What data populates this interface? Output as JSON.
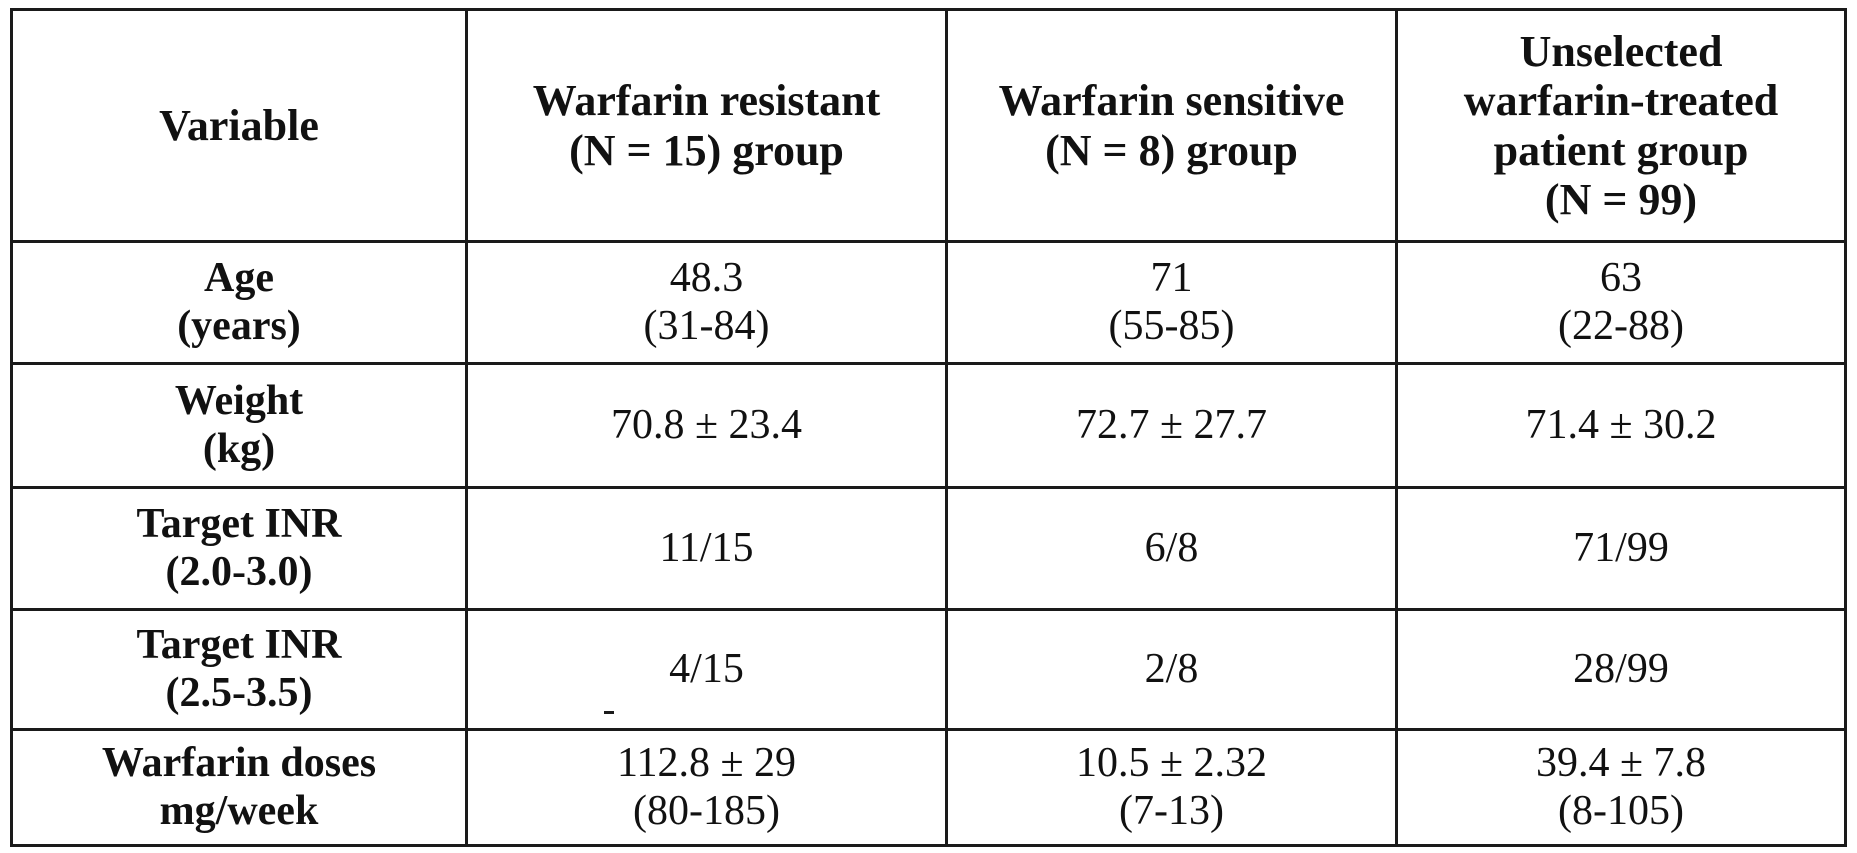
{
  "table": {
    "header": {
      "variable": "Variable",
      "resistant": [
        "Warfarin resistant",
        "(N = 15)  group"
      ],
      "sensitive": [
        "Warfarin sensitive",
        "(N = 8)  group"
      ],
      "unselected": [
        "Unselected",
        "warfarin-treated",
        "patient group",
        "(N = 99)"
      ]
    },
    "rows": [
      {
        "label": [
          "Age",
          "(years)"
        ],
        "resistant": [
          "48.3",
          "(31-84)"
        ],
        "sensitive": [
          "71",
          "(55-85)"
        ],
        "unselected": [
          "63",
          "(22-88)"
        ]
      },
      {
        "label": [
          "Weight",
          "(kg)"
        ],
        "resistant": [
          "70.8 ± 23.4"
        ],
        "sensitive": [
          "72.7 ± 27.7"
        ],
        "unselected": [
          "71.4 ± 30.2"
        ]
      },
      {
        "label": [
          "Target INR",
          "(2.0-3.0)"
        ],
        "resistant": [
          "11/15"
        ],
        "sensitive": [
          "6/8"
        ],
        "unselected": [
          "71/99"
        ]
      },
      {
        "label": [
          "Target INR",
          "(2.5-3.5)"
        ],
        "resistant": [
          "4/15"
        ],
        "sensitive": [
          "2/8"
        ],
        "unselected": [
          "28/99"
        ]
      },
      {
        "label": [
          "Warfarin doses",
          "mg/week"
        ],
        "resistant": [
          "112.8 ± 29",
          "(80-185)"
        ],
        "sensitive": [
          "10.5 ± 2.32",
          "(7-13)"
        ],
        "unselected": [
          "39.4 ± 7.8",
          "(8-105)"
        ]
      }
    ]
  }
}
